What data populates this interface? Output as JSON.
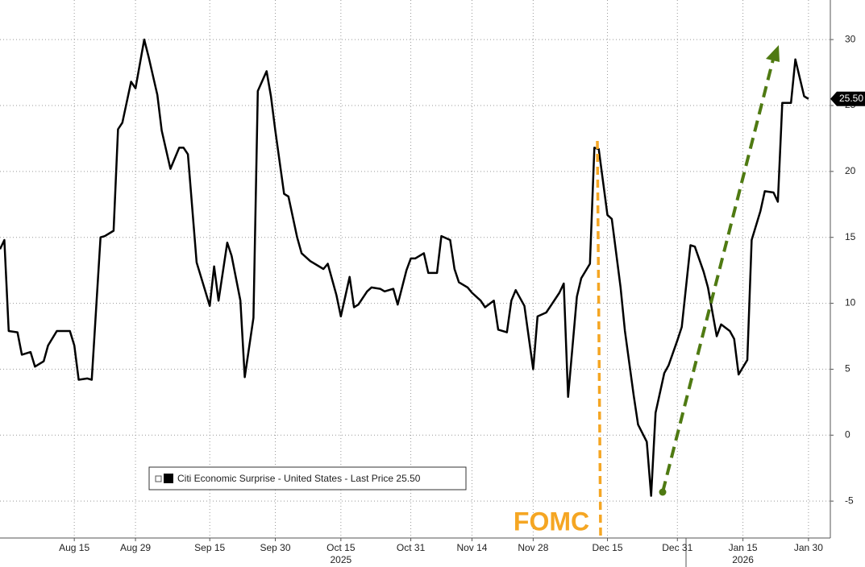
{
  "chart_data": {
    "type": "line",
    "x": [
      "2025-07-29",
      "2025-07-30",
      "2025-07-31",
      "2025-08-02",
      "2025-08-03",
      "2025-08-05",
      "2025-08-06",
      "2025-08-08",
      "2025-08-09",
      "2025-08-11",
      "2025-08-14",
      "2025-08-15",
      "2025-08-16",
      "2025-08-18",
      "2025-08-19",
      "2025-08-21",
      "2025-08-22",
      "2025-08-24",
      "2025-08-25",
      "2025-08-26",
      "2025-08-28",
      "2025-08-29",
      "2025-08-31",
      "2025-09-01",
      "2025-09-03",
      "2025-09-04",
      "2025-09-06",
      "2025-09-08",
      "2025-09-09",
      "2025-09-10",
      "2025-09-12",
      "2025-09-15",
      "2025-09-16",
      "2025-09-17",
      "2025-09-19",
      "2025-09-20",
      "2025-09-22",
      "2025-09-23",
      "2025-09-25",
      "2025-09-26",
      "2025-09-28",
      "2025-09-29",
      "2025-09-30",
      "2025-10-02",
      "2025-10-03",
      "2025-10-05",
      "2025-10-06",
      "2025-10-08",
      "2025-10-11",
      "2025-10-12",
      "2025-10-14",
      "2025-10-15",
      "2025-10-17",
      "2025-10-18",
      "2025-10-19",
      "2025-10-21",
      "2025-10-22",
      "2025-10-24",
      "2025-10-25",
      "2025-10-27",
      "2025-10-28",
      "2025-10-30",
      "2025-10-31",
      "2025-11-01",
      "2025-11-03",
      "2025-11-04",
      "2025-11-06",
      "2025-11-07",
      "2025-11-09",
      "2025-11-10",
      "2025-11-11",
      "2025-11-13",
      "2025-11-14",
      "2025-11-16",
      "2025-11-17",
      "2025-11-19",
      "2025-11-20",
      "2025-11-22",
      "2025-11-23",
      "2025-11-24",
      "2025-11-26",
      "2025-11-28",
      "2025-11-29",
      "2025-12-01",
      "2025-12-02",
      "2025-12-04",
      "2025-12-05",
      "2025-12-06",
      "2025-12-08",
      "2025-12-09",
      "2025-12-11",
      "2025-12-12",
      "2025-12-13",
      "2025-12-15",
      "2025-12-16",
      "2025-12-18",
      "2025-12-19",
      "2025-12-21",
      "2025-12-22",
      "2025-12-24",
      "2025-12-25",
      "2025-12-26",
      "2025-12-28",
      "2025-12-29",
      "2025-12-31",
      "2026-01-01",
      "2026-01-03",
      "2026-01-04",
      "2026-01-06",
      "2026-01-07",
      "2026-01-09",
      "2026-01-10",
      "2026-01-12",
      "2026-01-13",
      "2026-01-14",
      "2026-01-16",
      "2026-01-17",
      "2026-01-19",
      "2026-01-20",
      "2026-01-22",
      "2026-01-23",
      "2026-01-24",
      "2026-01-26",
      "2026-01-27",
      "2026-01-29",
      "2026-01-30"
    ],
    "series": [
      {
        "name": "Citi Economic Surprise - United States - Last Price 25.50",
        "color": "#000000",
        "values": [
          14.1,
          14.8,
          7.9,
          7.8,
          6.1,
          6.3,
          5.2,
          5.6,
          6.8,
          7.9,
          7.9,
          6.8,
          4.2,
          4.3,
          4.2,
          15.0,
          15.1,
          15.5,
          23.2,
          23.7,
          26.8,
          26.3,
          30.0,
          28.7,
          25.8,
          23.1,
          20.2,
          21.8,
          21.8,
          21.3,
          13.1,
          9.8,
          12.8,
          10.2,
          14.6,
          13.6,
          10.2,
          4.4,
          8.9,
          26.1,
          27.6,
          25.7,
          23.1,
          18.3,
          18.1,
          15.0,
          13.8,
          13.2,
          12.6,
          13.0,
          10.6,
          9.0,
          12.0,
          9.7,
          9.9,
          10.9,
          11.2,
          11.1,
          10.9,
          11.1,
          9.9,
          12.5,
          13.4,
          13.4,
          13.8,
          12.3,
          12.3,
          15.1,
          14.8,
          12.6,
          11.6,
          11.2,
          10.8,
          10.2,
          9.7,
          10.2,
          8.0,
          7.8,
          10.2,
          11.0,
          9.8,
          5.0,
          9.0,
          9.3,
          9.8,
          10.8,
          11.5,
          2.9,
          10.5,
          11.9,
          13.0,
          21.8,
          21.7,
          16.7,
          16.4,
          11.2,
          7.9,
          3.0,
          0.8,
          -0.5,
          -4.6,
          1.7,
          4.7,
          5.3,
          7.2,
          8.2,
          14.4,
          14.3,
          12.4,
          11.2,
          7.5,
          8.4,
          7.9,
          7.3,
          4.6,
          5.7,
          14.8,
          17.0,
          18.5,
          18.4,
          17.7,
          25.2,
          25.2,
          28.5,
          25.7,
          25.5
        ]
      }
    ],
    "last_price": {
      "value": 25.5,
      "label": "25.50"
    },
    "xlim": [
      "2025-07-29",
      "2026-02-04"
    ],
    "xticks": [
      {
        "value": "2025-08-15",
        "label": "Aug 15"
      },
      {
        "value": "2025-08-29",
        "label": "Aug 29"
      },
      {
        "value": "2025-09-15",
        "label": "Sep 15"
      },
      {
        "value": "2025-09-30",
        "label": "Sep 30"
      },
      {
        "value": "2025-10-15",
        "label": "Oct 15"
      },
      {
        "value": "2025-10-31",
        "label": "Oct 31"
      },
      {
        "value": "2025-11-14",
        "label": "Nov 14"
      },
      {
        "value": "2025-11-28",
        "label": "Nov 28"
      },
      {
        "value": "2025-12-15",
        "label": "Dec 15"
      },
      {
        "value": "2025-12-31",
        "label": "Dec 31"
      },
      {
        "value": "2026-01-15",
        "label": "Jan 15"
      },
      {
        "value": "2026-01-30",
        "label": "Jan 30"
      }
    ],
    "year_labels": [
      {
        "value": "2025-10-15",
        "label": "2025"
      },
      {
        "value": "2026-01-15",
        "label": "2026"
      }
    ],
    "ylim": [
      -7.8,
      33
    ],
    "yticks": [
      -5,
      0,
      5,
      10,
      15,
      20,
      25,
      30
    ],
    "grid": true,
    "annotation": "FOMC"
  }
}
